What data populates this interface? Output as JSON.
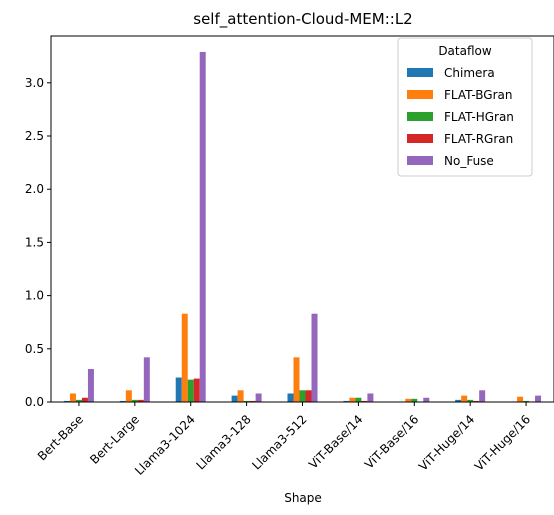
{
  "chart_data": {
    "type": "bar",
    "title": "self_attention-Cloud-MEM::L2",
    "xlabel": "Shape",
    "ylabel": "",
    "ylim": [
      0,
      3.44
    ],
    "yticks": [
      0.0,
      0.5,
      1.0,
      1.5,
      2.0,
      2.5,
      3.0
    ],
    "ytick_labels": [
      "0.0",
      "0.5",
      "1.0",
      "1.5",
      "2.0",
      "2.5",
      "3.0"
    ],
    "grid": false,
    "legend": {
      "title": "Dataflow",
      "position": "top-right"
    },
    "categories": [
      "Bert-Base",
      "Bert-Large",
      "Llama3-1024",
      "Llama3-128",
      "Llama3-512",
      "ViT-Base/14",
      "ViT-Base/16",
      "ViT-Huge/14",
      "ViT-Huge/16"
    ],
    "series": [
      {
        "name": "Chimera",
        "color": "#1f77b4",
        "values": [
          0.01,
          0.01,
          0.23,
          0.06,
          0.08,
          0.01,
          0.005,
          0.02,
          0.005
        ]
      },
      {
        "name": "FLAT-BGran",
        "color": "#ff7f0e",
        "values": [
          0.08,
          0.11,
          0.83,
          0.11,
          0.42,
          0.04,
          0.03,
          0.06,
          0.05
        ]
      },
      {
        "name": "FLAT-HGran",
        "color": "#2ca02c",
        "values": [
          0.02,
          0.02,
          0.21,
          0.01,
          0.11,
          0.04,
          0.03,
          0.02,
          0.01
        ]
      },
      {
        "name": "FLAT-RGran",
        "color": "#d62728",
        "values": [
          0.04,
          0.02,
          0.22,
          0.01,
          0.11,
          0.01,
          0.005,
          0.01,
          0.005
        ]
      },
      {
        "name": "No_Fuse",
        "color": "#9467bd",
        "values": [
          0.31,
          0.42,
          3.29,
          0.08,
          0.83,
          0.08,
          0.04,
          0.11,
          0.06
        ]
      }
    ]
  }
}
